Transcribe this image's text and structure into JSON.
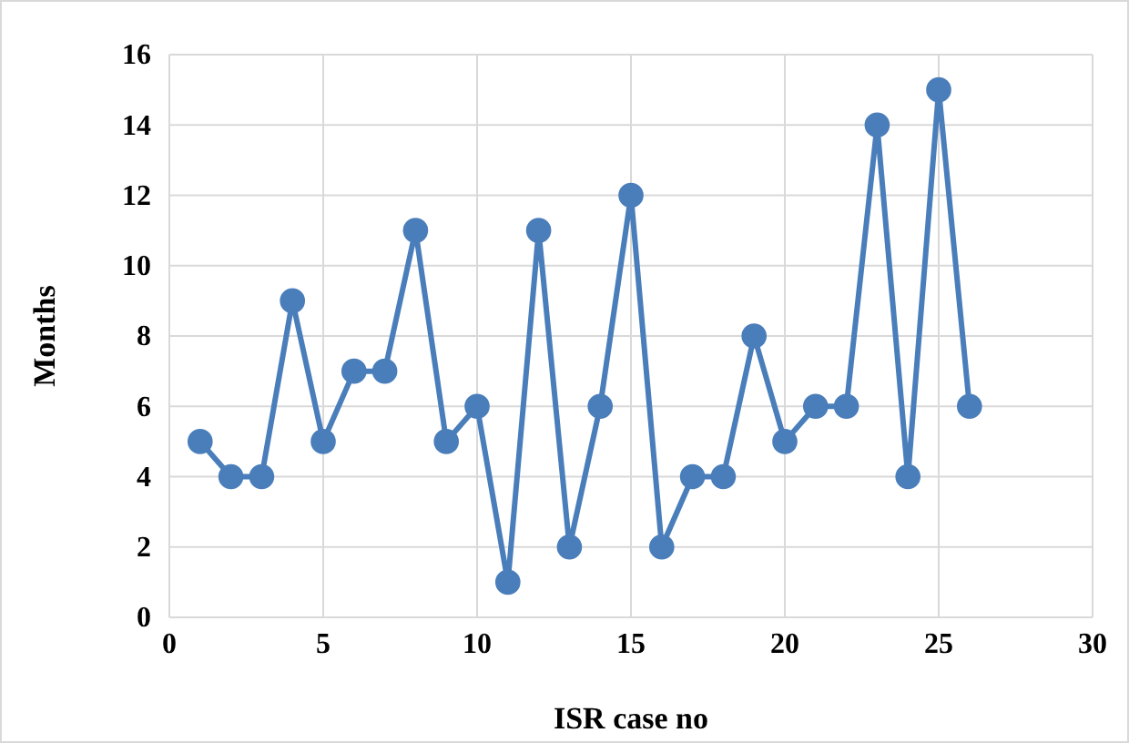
{
  "chart_data": {
    "type": "line",
    "xlabel": "ISR case no",
    "ylabel": "Months",
    "x": [
      1,
      2,
      3,
      4,
      5,
      6,
      7,
      8,
      9,
      10,
      11,
      12,
      13,
      14,
      15,
      16,
      17,
      18,
      19,
      20,
      21,
      22,
      23,
      24,
      25,
      26
    ],
    "series": [
      {
        "color": "#4a7ebb",
        "values": [
          5,
          4,
          4,
          9,
          5,
          7,
          7,
          11,
          5,
          6,
          1,
          11,
          2,
          6,
          12,
          2,
          4,
          4,
          8,
          5,
          6,
          6,
          14,
          4,
          15,
          6
        ]
      }
    ],
    "xlim": [
      0,
      30
    ],
    "xticks": [
      0,
      5,
      10,
      15,
      20,
      25,
      30
    ],
    "ylim": [
      0,
      16
    ],
    "yticks": [
      0,
      2,
      4,
      6,
      8,
      10,
      12,
      14,
      16
    ],
    "grid": true,
    "marker": "circle",
    "line_style": "solid"
  }
}
